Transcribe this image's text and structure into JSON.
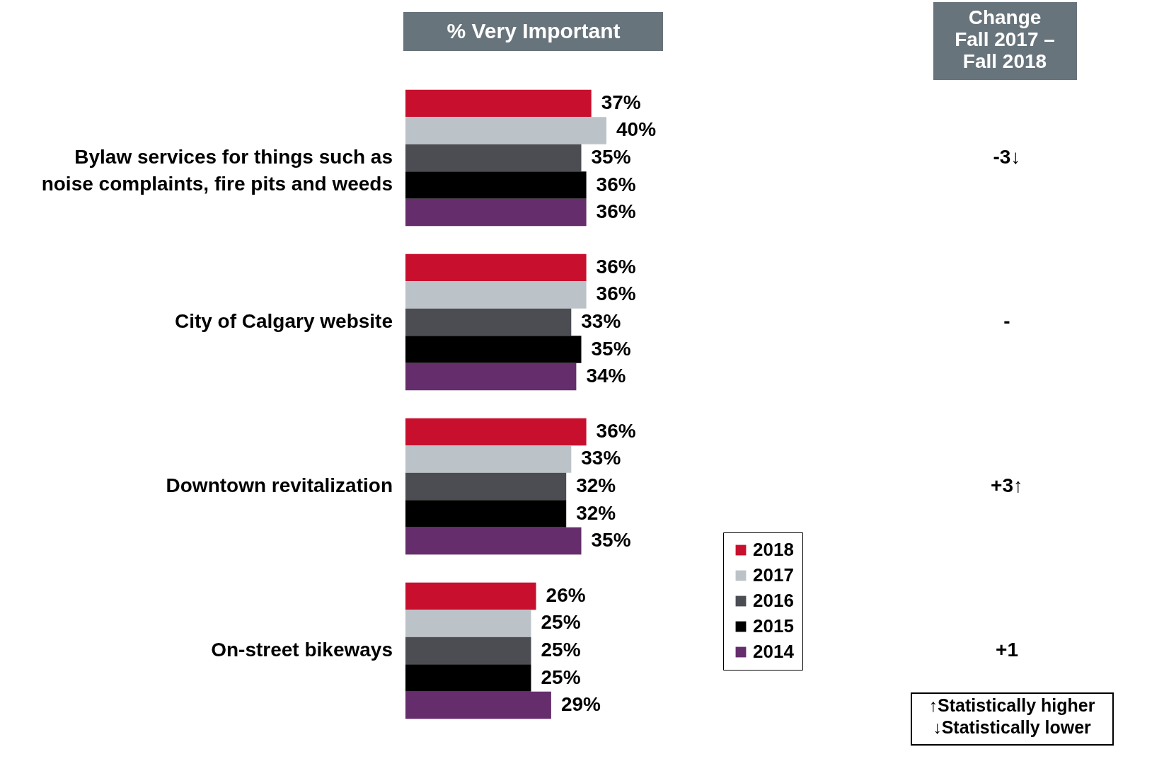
{
  "chart_data": {
    "type": "bar",
    "orientation": "horizontal",
    "title": "% Very Important",
    "categories": [
      "Bylaw services for things such as noise complaints, fire pits and weeds",
      "City of Calgary website",
      "Downtown revitalization",
      "On-street bikeways"
    ],
    "series": [
      {
        "name": "2018",
        "color": "#c8102e",
        "values": [
          37,
          36,
          36,
          26
        ],
        "value_labels": [
          "37%",
          "36%",
          "36%",
          "26%"
        ]
      },
      {
        "name": "2017",
        "color": "#bcc3c8",
        "values": [
          40,
          36,
          33,
          25
        ],
        "value_labels": [
          "40%",
          "36%",
          "33%",
          "25%"
        ]
      },
      {
        "name": "2016",
        "color": "#4b4d53",
        "values": [
          35,
          33,
          32,
          25
        ],
        "value_labels": [
          "35%",
          "33%",
          "32%",
          "25%"
        ]
      },
      {
        "name": "2015",
        "color": "#000000",
        "values": [
          36,
          35,
          32,
          25
        ],
        "value_labels": [
          "36%",
          "35%",
          "32%",
          "25%"
        ]
      },
      {
        "name": "2014",
        "color": "#652d6b",
        "values": [
          36,
          34,
          35,
          29
        ],
        "value_labels": [
          "36%",
          "34%",
          "35%",
          "29%"
        ]
      }
    ],
    "legend": "bottom right",
    "tick_labels": "y",
    "annotations": [
      "Change\nFall 2017 –\nFall 2018",
      "-3↓",
      "-",
      "+3↑",
      "+1",
      "↑Statistically higher\n↓Statistically lower"
    ]
  }
}
